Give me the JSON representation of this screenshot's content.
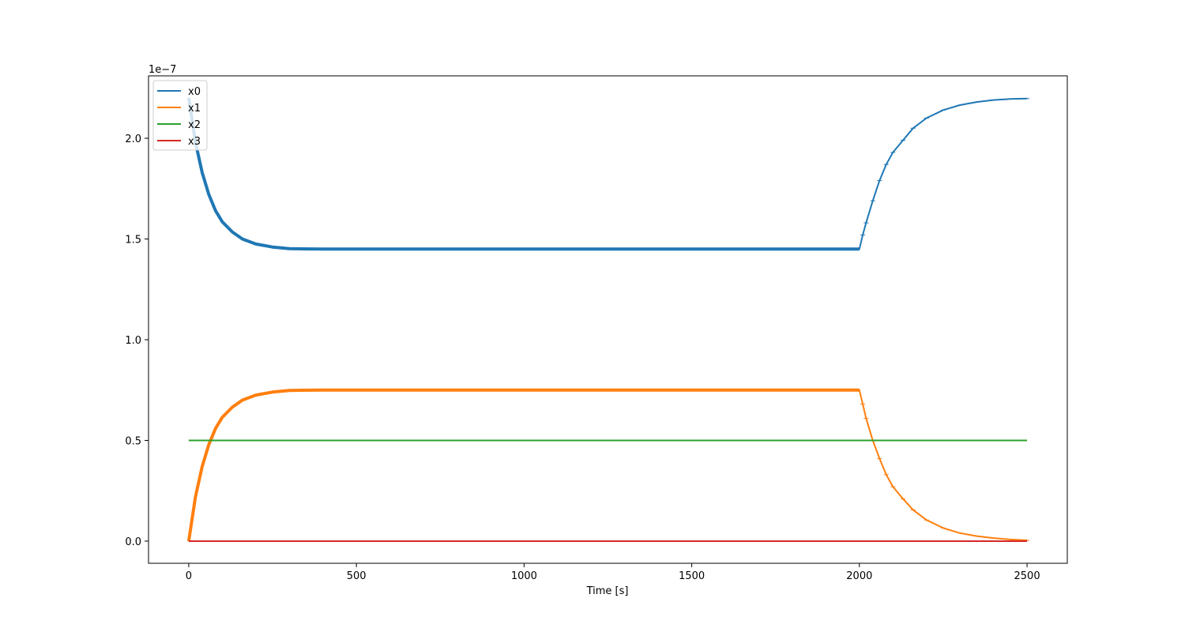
{
  "chart_data": {
    "type": "line",
    "title": "",
    "xlabel": "Time [s]",
    "ylabel": "",
    "y_offset_label": "1e−7",
    "xlim": [
      -120,
      2620
    ],
    "ylim": [
      -0.11,
      2.31
    ],
    "x_ticks": [
      0,
      500,
      1000,
      1500,
      2000,
      2500
    ],
    "x_tick_labels": [
      "0",
      "500",
      "1000",
      "1500",
      "2000",
      "2500"
    ],
    "y_ticks": [
      0.0,
      0.5,
      1.0,
      1.5,
      2.0
    ],
    "y_tick_labels": [
      "0.0",
      "0.5",
      "1.0",
      "1.5",
      "2.0"
    ],
    "grid": false,
    "legend_position": "top-left",
    "series": [
      {
        "name": "x0",
        "color": "#1f77b4",
        "x": [
          0,
          20,
          40,
          60,
          80,
          100,
          130,
          160,
          200,
          250,
          300,
          400,
          600,
          800,
          1000,
          1200,
          1400,
          1600,
          1800,
          2000,
          2000,
          2010,
          2020,
          2040,
          2060,
          2080,
          2100,
          2130,
          2160,
          2200,
          2250,
          2300,
          2350,
          2400,
          2450,
          2500
        ],
        "y": [
          2.2,
          1.98,
          1.83,
          1.72,
          1.64,
          1.585,
          1.535,
          1.5,
          1.475,
          1.46,
          1.452,
          1.45,
          1.45,
          1.45,
          1.45,
          1.45,
          1.45,
          1.45,
          1.45,
          1.45,
          1.45,
          1.52,
          1.58,
          1.69,
          1.79,
          1.87,
          1.93,
          1.99,
          2.05,
          2.1,
          2.14,
          2.165,
          2.18,
          2.19,
          2.195,
          2.197
        ]
      },
      {
        "name": "x1",
        "color": "#ff7f0e",
        "x": [
          0,
          20,
          40,
          60,
          80,
          100,
          130,
          160,
          200,
          250,
          300,
          400,
          600,
          800,
          1000,
          1200,
          1400,
          1600,
          1800,
          2000,
          2000,
          2010,
          2020,
          2040,
          2060,
          2080,
          2100,
          2130,
          2160,
          2200,
          2250,
          2300,
          2350,
          2400,
          2450,
          2500
        ],
        "y": [
          0.0,
          0.22,
          0.37,
          0.48,
          0.56,
          0.615,
          0.665,
          0.7,
          0.725,
          0.74,
          0.748,
          0.75,
          0.75,
          0.75,
          0.75,
          0.75,
          0.75,
          0.75,
          0.75,
          0.75,
          0.75,
          0.68,
          0.61,
          0.5,
          0.41,
          0.33,
          0.27,
          0.21,
          0.155,
          0.105,
          0.065,
          0.04,
          0.025,
          0.015,
          0.008,
          0.004
        ]
      },
      {
        "name": "x2",
        "color": "#2ca02c",
        "x": [
          0,
          500,
          1000,
          1500,
          2000,
          2250,
          2500
        ],
        "y": [
          0.5,
          0.5,
          0.5,
          0.5,
          0.5,
          0.5,
          0.5
        ]
      },
      {
        "name": "x3",
        "color": "#d62728",
        "x": [
          0,
          500,
          1000,
          1500,
          2000,
          2250,
          2500
        ],
        "y": [
          0.0,
          0.0,
          0.0,
          0.0,
          0.0,
          0.0,
          0.0
        ]
      }
    ]
  }
}
